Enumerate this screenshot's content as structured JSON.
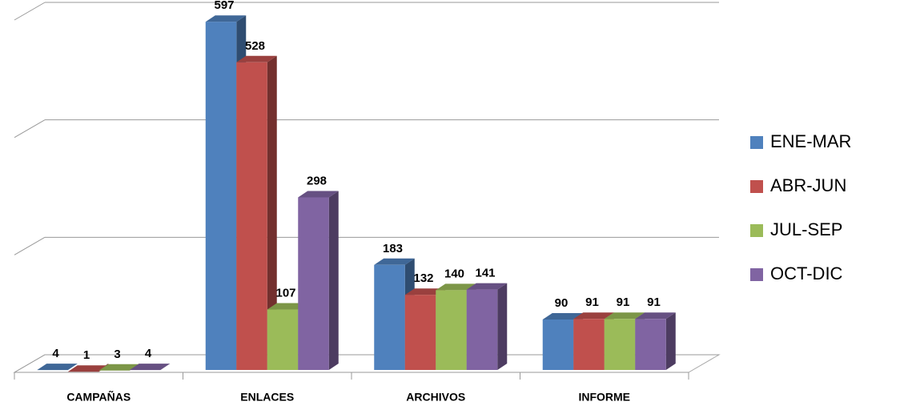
{
  "chart_data": {
    "type": "bar3d",
    "categories": [
      "CAMPAÑAS",
      "ENLACES",
      "ARCHIVOS",
      "INFORME"
    ],
    "series": [
      {
        "name": "ENE-MAR",
        "color": "#4f81bd",
        "values": [
          4,
          597,
          183,
          90
        ]
      },
      {
        "name": "ABR-JUN",
        "color": "#c0504d",
        "values": [
          1,
          528,
          132,
          91
        ]
      },
      {
        "name": "JUL-SEP",
        "color": "#9bbb59",
        "values": [
          3,
          107,
          140,
          91
        ]
      },
      {
        "name": "OCT-DIC",
        "color": "#8064a2",
        "values": [
          4,
          298,
          141,
          91
        ]
      }
    ],
    "ylim": [
      0,
      600
    ],
    "yticks": [
      0,
      200,
      400,
      600
    ],
    "grid": true,
    "legend": "right"
  }
}
